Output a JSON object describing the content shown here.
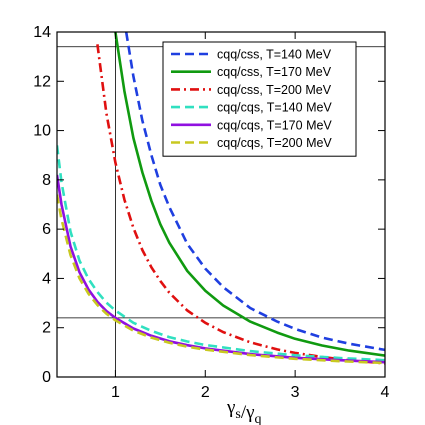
{
  "chart_data": {
    "type": "line",
    "title": "",
    "xlabel": "γs/γq",
    "ylabel": "",
    "xlim": [
      0.35,
      4.0
    ],
    "ylim": [
      0,
      14
    ],
    "xticks": [
      1,
      2,
      3,
      4
    ],
    "yticks": [
      0,
      2,
      4,
      6,
      8,
      10,
      12,
      14
    ],
    "grid": false,
    "legend_position": "top-right",
    "reference_lines": {
      "horizontal": [
        2.4,
        13.4
      ],
      "vertical": [
        1.0
      ]
    },
    "series": [
      {
        "name": "cqq/css, T=140 MeV",
        "color": "#1f3fe0",
        "dash": "dashed",
        "x": [
          1.12,
          1.2,
          1.3,
          1.4,
          1.5,
          1.6,
          1.8,
          2.0,
          2.2,
          2.5,
          2.8,
          3.0,
          3.3,
          3.6,
          4.0
        ],
        "y": [
          14.0,
          12.2,
          10.4,
          9.0,
          7.8,
          6.9,
          5.4,
          4.4,
          3.65,
          2.8,
          2.25,
          1.95,
          1.6,
          1.35,
          1.1
        ]
      },
      {
        "name": "cqq/css, T=170 MeV",
        "color": "#109a10",
        "dash": "solid",
        "x": [
          1.0,
          1.1,
          1.2,
          1.3,
          1.4,
          1.5,
          1.6,
          1.8,
          2.0,
          2.2,
          2.5,
          2.8,
          3.0,
          3.3,
          3.6,
          4.0
        ],
        "y": [
          14.0,
          11.6,
          9.7,
          8.3,
          7.15,
          6.2,
          5.45,
          4.3,
          3.5,
          2.9,
          2.25,
          1.8,
          1.55,
          1.28,
          1.07,
          0.87
        ]
      },
      {
        "name": "cqq/css, T=200 MeV",
        "color": "#e01010",
        "dash": "dashdot",
        "x": [
          0.8,
          0.9,
          1.0,
          1.1,
          1.2,
          1.3,
          1.4,
          1.5,
          1.6,
          1.8,
          2.0,
          2.2,
          2.5,
          2.8,
          3.0,
          3.3,
          3.6,
          4.0
        ],
        "y": [
          13.5,
          10.7,
          8.7,
          7.2,
          6.05,
          5.15,
          4.45,
          3.9,
          3.42,
          2.7,
          2.2,
          1.82,
          1.41,
          1.12,
          0.98,
          0.81,
          0.68,
          0.55
        ]
      },
      {
        "name": "cqq/cqs, T=140 MeV",
        "color": "#30e0c0",
        "dash": "dashed",
        "x": [
          0.35,
          0.4,
          0.5,
          0.6,
          0.7,
          0.8,
          0.9,
          1.0,
          1.2,
          1.4,
          1.6,
          1.8,
          2.0,
          2.5,
          3.0,
          3.5,
          4.0
        ],
        "y": [
          9.4,
          7.9,
          5.9,
          4.72,
          3.98,
          3.45,
          3.02,
          2.7,
          2.2,
          1.87,
          1.62,
          1.44,
          1.3,
          1.05,
          0.88,
          0.77,
          0.68
        ]
      },
      {
        "name": "cqq/cqs, T=170 MeV",
        "color": "#9010e0",
        "dash": "solid",
        "x": [
          0.35,
          0.4,
          0.5,
          0.6,
          0.7,
          0.8,
          0.9,
          1.0,
          1.2,
          1.4,
          1.6,
          1.8,
          2.0,
          2.5,
          3.0,
          3.5,
          4.0
        ],
        "y": [
          8.2,
          7.0,
          5.3,
          4.25,
          3.55,
          3.05,
          2.68,
          2.4,
          1.97,
          1.67,
          1.45,
          1.29,
          1.16,
          0.93,
          0.78,
          0.68,
          0.6
        ]
      },
      {
        "name": "cqq/cqs, T=200 MeV",
        "color": "#c8c820",
        "dash": "dashed",
        "x": [
          0.35,
          0.4,
          0.5,
          0.6,
          0.7,
          0.8,
          0.9,
          1.0,
          1.2,
          1.4,
          1.6,
          1.8,
          2.0,
          2.5,
          3.0,
          3.5,
          4.0
        ],
        "y": [
          7.4,
          6.4,
          4.95,
          4.0,
          3.38,
          2.92,
          2.57,
          2.3,
          1.88,
          1.6,
          1.39,
          1.23,
          1.11,
          0.89,
          0.74,
          0.64,
          0.57
        ]
      }
    ]
  }
}
